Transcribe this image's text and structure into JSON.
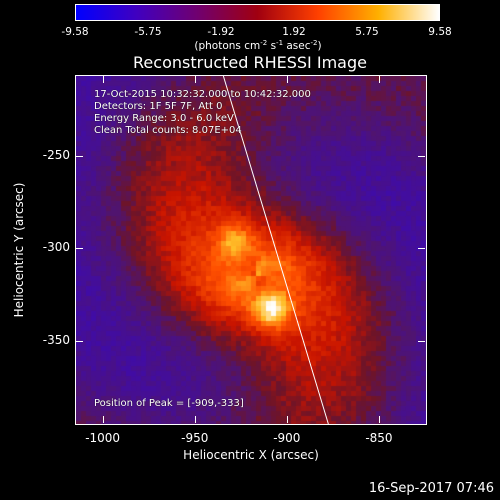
{
  "colorbar": {
    "ticks": [
      "-9.58",
      "-5.75",
      "-1.92",
      "1.92",
      "5.75",
      "9.58"
    ],
    "unit_prefix": "(photons cm",
    "unit_exp1": "-2",
    "unit_mid1": " s",
    "unit_exp2": "-1",
    "unit_mid2": " asec",
    "unit_exp3": "-2",
    "unit_suffix": ")",
    "colors": [
      "#0000ff",
      "#4000c0",
      "#700070",
      "#a00010",
      "#ff4000",
      "#ffb000",
      "#ffffff"
    ]
  },
  "chart_data": {
    "type": "heatmap",
    "title": "Reconstructed RHESSI Image",
    "xlabel": "Heliocentric X (arcsec)",
    "ylabel": "Heliocentric Y (arcsec)",
    "x_ticks": [
      "-1000",
      "-950",
      "-900",
      "-850"
    ],
    "y_ticks": [
      "-250",
      "-300",
      "-350"
    ],
    "xlim": [
      -1015,
      -825
    ],
    "ylim": [
      -395,
      -207
    ],
    "sources": [
      {
        "x": -928,
        "y": -297,
        "peak": 7.5
      },
      {
        "x": -909,
        "y": -333,
        "peak": 9.58
      }
    ],
    "limb_line": [
      [
        -935,
        -207
      ],
      [
        -878,
        -395
      ]
    ],
    "value_range": [
      -9.58,
      9.58
    ]
  },
  "annotations": {
    "time_range": "17-Oct-2015 10:32:32.000 to 10:42:32.000",
    "detectors": "Detectors: 1F 5F 7F, Att 0",
    "energy": "Energy Range: 3.0 - 6.0 keV",
    "clean": "Clean    Total counts: 8.07E+04",
    "peak": "Position of Peak = [-909,-333]"
  },
  "footer": "16-Sep-2017 07:46"
}
